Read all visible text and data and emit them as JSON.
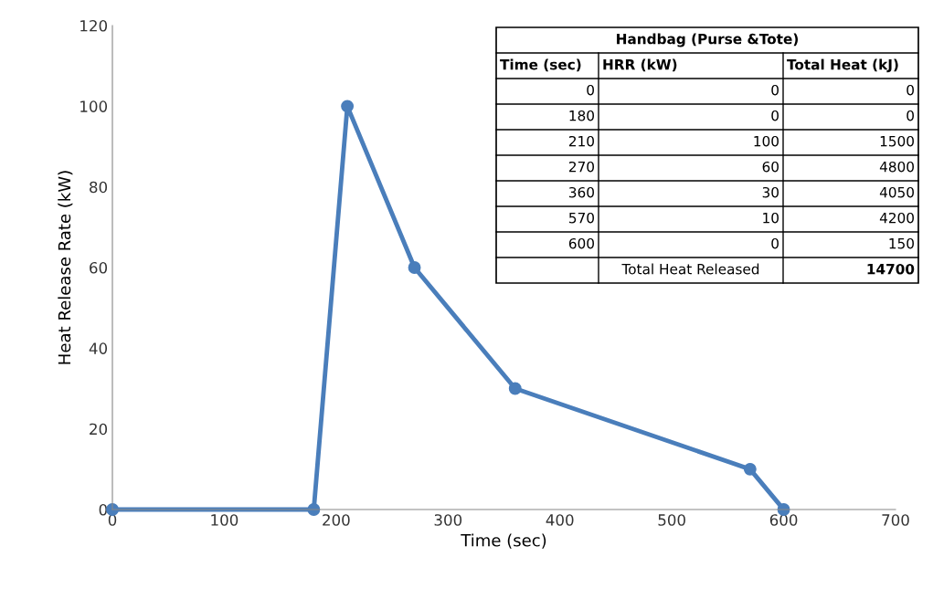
{
  "chart_data": {
    "type": "line",
    "xlabel": "Time (sec)",
    "ylabel": "Heat Release Rate (kW)",
    "x": [
      0,
      180,
      210,
      270,
      360,
      570,
      600
    ],
    "series": [
      {
        "color": "#4a7ebb",
        "values": [
          0,
          0,
          100,
          60,
          30,
          10,
          0
        ]
      }
    ],
    "xlim": [
      0,
      700
    ],
    "xticks": [
      0,
      100,
      200,
      300,
      400,
      500,
      600,
      700
    ],
    "ylim": [
      0,
      120
    ],
    "yticks": [
      0,
      20,
      40,
      60,
      80,
      100,
      120
    ],
    "grid": false,
    "marker": "circle",
    "line_style": "solid",
    "annotations": [
      "Handbag (Purse &Tote)",
      "Time (sec)",
      "HRR (kW)",
      "Total Heat (kJ)",
      "0",
      "0",
      "0",
      "180",
      "0",
      "0",
      "210",
      "100",
      "1500",
      "270",
      "60",
      "4800",
      "360",
      "30",
      "4050",
      "570",
      "10",
      "4200",
      "600",
      "0",
      "150",
      "Total Heat Released",
      "14700"
    ]
  }
}
